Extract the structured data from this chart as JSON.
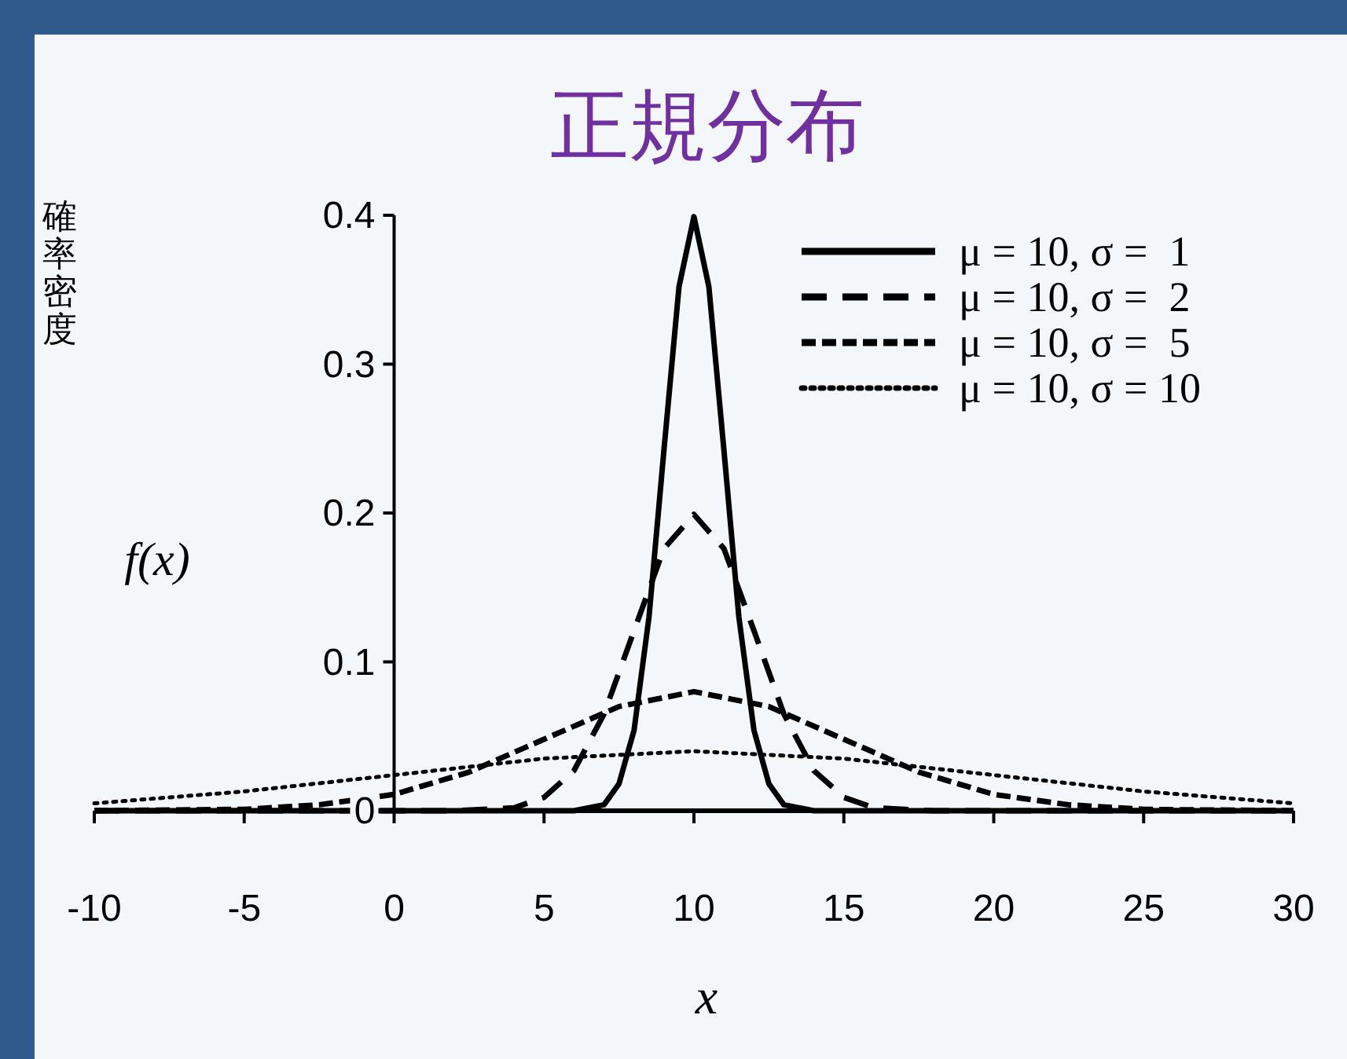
{
  "chart_data": {
    "type": "line",
    "title": "正規分布",
    "ylabel": "確率密度",
    "xlabel": "x",
    "annotations": [
      "f(x)"
    ],
    "xlim": [
      -10,
      30
    ],
    "ylim": [
      0,
      0.4
    ],
    "xticks": [
      -10,
      -5,
      0,
      5,
      10,
      15,
      20,
      25,
      30
    ],
    "yticks": [
      0,
      0.1,
      0.2,
      0.3,
      0.4
    ],
    "grid": false,
    "legend": "top right",
    "marker": "none",
    "series": [
      {
        "name": "μ = 10, σ =  1",
        "color": "#000000",
        "line_style": "solid",
        "x": [
          -10,
          5,
          6,
          7,
          7.5,
          8,
          8.5,
          9,
          9.5,
          10,
          10.5,
          11,
          11.5,
          12,
          12.5,
          13,
          14,
          15,
          30
        ],
        "values": [
          0,
          0,
          0,
          0.004,
          0.018,
          0.054,
          0.13,
          0.242,
          0.352,
          0.399,
          0.352,
          0.242,
          0.13,
          0.054,
          0.018,
          0.004,
          0,
          0,
          0
        ]
      },
      {
        "name": "μ = 10, σ =  2",
        "color": "#000000",
        "line_style": "dashed",
        "x": [
          -10,
          2,
          4,
          5,
          6,
          7,
          8,
          9,
          10,
          11,
          12,
          13,
          14,
          15,
          16,
          18,
          30
        ],
        "values": [
          0,
          0,
          0.002,
          0.009,
          0.027,
          0.065,
          0.121,
          0.176,
          0.199,
          0.176,
          0.121,
          0.065,
          0.027,
          0.009,
          0.002,
          0,
          0
        ]
      },
      {
        "name": "μ = 10, σ =  5",
        "color": "#000000",
        "line_style": "dashed",
        "x": [
          -10,
          -5,
          -2.5,
          0,
          2.5,
          5,
          7.5,
          10,
          12.5,
          15,
          17.5,
          20,
          22.5,
          25,
          30
        ],
        "values": [
          0,
          0.001,
          0.004,
          0.011,
          0.026,
          0.048,
          0.07,
          0.08,
          0.07,
          0.048,
          0.026,
          0.011,
          0.004,
          0.001,
          0
        ]
      },
      {
        "name": "μ = 10, σ = 10",
        "color": "#000000",
        "line_style": "dotted",
        "x": [
          -10,
          -5,
          0,
          5,
          10,
          15,
          20,
          25,
          30
        ],
        "values": [
          0.005,
          0.013,
          0.024,
          0.035,
          0.04,
          0.035,
          0.024,
          0.013,
          0.005
        ]
      }
    ]
  }
}
